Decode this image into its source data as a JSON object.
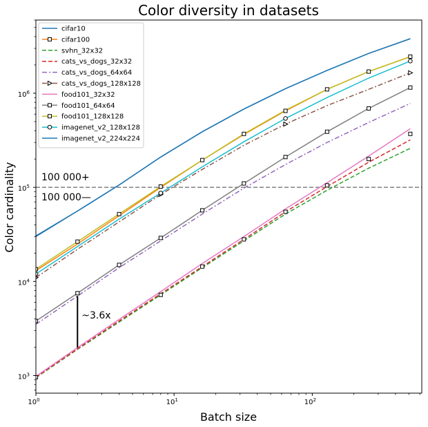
{
  "chart_data": {
    "type": "line",
    "title": "Color diversity in datasets",
    "xlabel": "Batch size",
    "ylabel": "Color cardinality",
    "xscale": "log",
    "yscale": "log",
    "xlim": [
      1,
      620
    ],
    "ylim": [
      650,
      6000000
    ],
    "grid": false,
    "legend_position": "top-left",
    "x_ticks": [
      {
        "value": 1,
        "base": "10",
        "exp": "0"
      },
      {
        "value": 10,
        "base": "10",
        "exp": "1"
      },
      {
        "value": 100,
        "base": "10",
        "exp": "2"
      }
    ],
    "y_ticks": [
      {
        "value": 1000,
        "base": "10",
        "exp": "3"
      },
      {
        "value": 10000,
        "base": "10",
        "exp": "4"
      },
      {
        "value": 100000,
        "base": "10",
        "exp": "5"
      },
      {
        "value": 1000000,
        "base": "10",
        "exp": "6"
      }
    ],
    "x": [
      1,
      2,
      4,
      8,
      16,
      32,
      64,
      128,
      256,
      512
    ],
    "series": [
      {
        "name": "cifar10",
        "color": "#1f77b4",
        "dash": "solid",
        "marker": "none",
        "values": [
          30000,
          56000,
          106000,
          210000,
          390000,
          680000,
          1120000,
          1750000,
          2650000,
          3800000
        ]
      },
      {
        "name": "cifar100",
        "color": "#ff7f0e",
        "dash": "solid",
        "marker": "square",
        "marker_every": 3,
        "values": [
          13000,
          25000,
          50000,
          100000,
          195000,
          365000,
          650000,
          1100000,
          1700000,
          2450000
        ]
      },
      {
        "name": "svhn_32x32",
        "color": "#2ca02c",
        "dash": "dashed",
        "marker": "none",
        "values": [
          950,
          1900,
          3700,
          7200,
          14000,
          27000,
          52000,
          93000,
          160000,
          260000
        ]
      },
      {
        "name": "cats_vs_dogs_32x32",
        "color": "#d62728",
        "dash": "dashed",
        "marker": "none",
        "values": [
          960,
          1920,
          3800,
          7400,
          14400,
          28000,
          55000,
          102000,
          185000,
          320000
        ]
      },
      {
        "name": "cats_vs_dogs_64x64",
        "color": "#9467bd",
        "dash": "dashdot",
        "marker": "none",
        "values": [
          3500,
          7000,
          14000,
          27000,
          52000,
          98000,
          175000,
          300000,
          490000,
          780000
        ]
      },
      {
        "name": "cats_vs_dogs_128x128",
        "color": "#8c564b",
        "dash": "dashdot",
        "marker": "triangle",
        "marker_every": 3,
        "values": [
          11000,
          22000,
          43000,
          84000,
          155000,
          280000,
          470000,
          740000,
          1100000,
          1650000
        ]
      },
      {
        "name": "food101_32x32",
        "color": "#e377c2",
        "dash": "solid",
        "marker": "none",
        "values": [
          980,
          1980,
          3950,
          7800,
          15500,
          30000,
          59000,
          112000,
          215000,
          420000
        ]
      },
      {
        "name": "food101_64x64",
        "color": "#7f7f7f",
        "dash": "solid",
        "marker": "square",
        "marker_every": 3,
        "values": [
          3800,
          7500,
          15000,
          29000,
          57000,
          110000,
          210000,
          390000,
          690000,
          1150000
        ]
      },
      {
        "name": "food101_128x128",
        "color": "#bcbd22",
        "dash": "solid",
        "marker": "square",
        "marker_every": 3,
        "values": [
          13500,
          26500,
          52000,
          102000,
          195000,
          370000,
          660000,
          1100000,
          1700000,
          2450000
        ]
      },
      {
        "name": "imagenet_v2_128x128",
        "color": "#17becf",
        "dash": "solid",
        "marker": "circle",
        "marker_every": 3,
        "values": [
          12000,
          23500,
          46000,
          87000,
          165000,
          305000,
          540000,
          900000,
          1450000,
          2200000
        ]
      },
      {
        "name": "imagenet_v2_224x224",
        "color": "#1f77b4",
        "dash": "solid",
        "marker": "none",
        "values": [
          30500,
          56000,
          106000,
          210000,
          390000,
          680000,
          1120000,
          1750000,
          2650000,
          3800000
        ]
      }
    ],
    "square_markers": [
      {
        "x": 1,
        "y": 13500
      },
      {
        "x": 8,
        "y": 102000
      },
      {
        "x": 64,
        "y": 650000
      },
      {
        "x": 512,
        "y": 2450000
      },
      {
        "x": 1,
        "y": 3800
      },
      {
        "x": 8,
        "y": 29000
      },
      {
        "x": 64,
        "y": 210000
      },
      {
        "x": 512,
        "y": 1150000
      },
      {
        "x": 2,
        "y": 26500
      },
      {
        "x": 16,
        "y": 195000
      },
      {
        "x": 128,
        "y": 1100000
      },
      {
        "x": 2,
        "y": 7500
      },
      {
        "x": 16,
        "y": 57000
      },
      {
        "x": 128,
        "y": 390000
      },
      {
        "x": 4,
        "y": 52000
      },
      {
        "x": 32,
        "y": 370000
      },
      {
        "x": 256,
        "y": 1700000
      },
      {
        "x": 4,
        "y": 15000
      },
      {
        "x": 32,
        "y": 110000
      },
      {
        "x": 256,
        "y": 690000
      },
      {
        "x": 1,
        "y": 960
      },
      {
        "x": 8,
        "y": 7200
      },
      {
        "x": 16,
        "y": 14400
      },
      {
        "x": 32,
        "y": 28000
      },
      {
        "x": 64,
        "y": 55000
      },
      {
        "x": 128,
        "y": 105000
      },
      {
        "x": 256,
        "y": 200000
      },
      {
        "x": 512,
        "y": 370000
      }
    ],
    "hline": {
      "y": 100000,
      "color": "#808080",
      "dash": "dashed"
    },
    "annotations": {
      "above_line": "100 000+",
      "below_line": "100 000—",
      "ratio": "~3.6x",
      "ratio_bar": {
        "x": 2,
        "y_low": 1980,
        "y_high": 7000
      }
    }
  }
}
